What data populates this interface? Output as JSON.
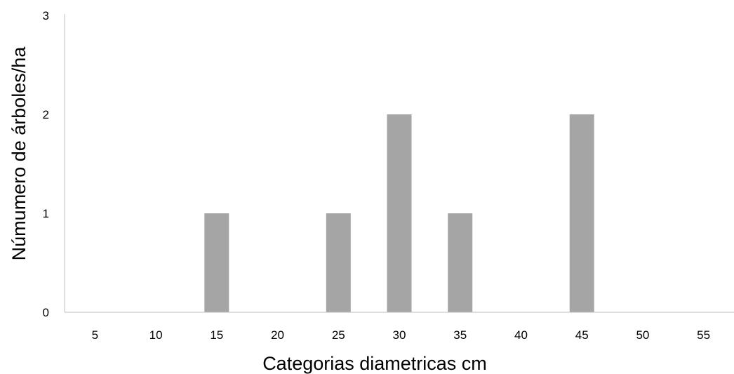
{
  "chart_data": {
    "type": "bar",
    "categories": [
      "5",
      "10",
      "15",
      "20",
      "25",
      "30",
      "35",
      "40",
      "45",
      "50",
      "55"
    ],
    "series": [
      {
        "values": [
          0,
          0,
          1,
          0,
          1,
          2,
          1,
          0,
          2,
          0,
          0
        ]
      }
    ],
    "xlabel": "Categorias diametricas cm",
    "ylabel": "Númumero de árboles/ha",
    "ylim": [
      0,
      3
    ],
    "yticks": [
      "0",
      "1",
      "2",
      "3"
    ],
    "grid": false,
    "legend": "none",
    "colors": {
      "bar": "#a5a5a5",
      "axis": "#bfbfbf",
      "text": "#000000"
    }
  }
}
